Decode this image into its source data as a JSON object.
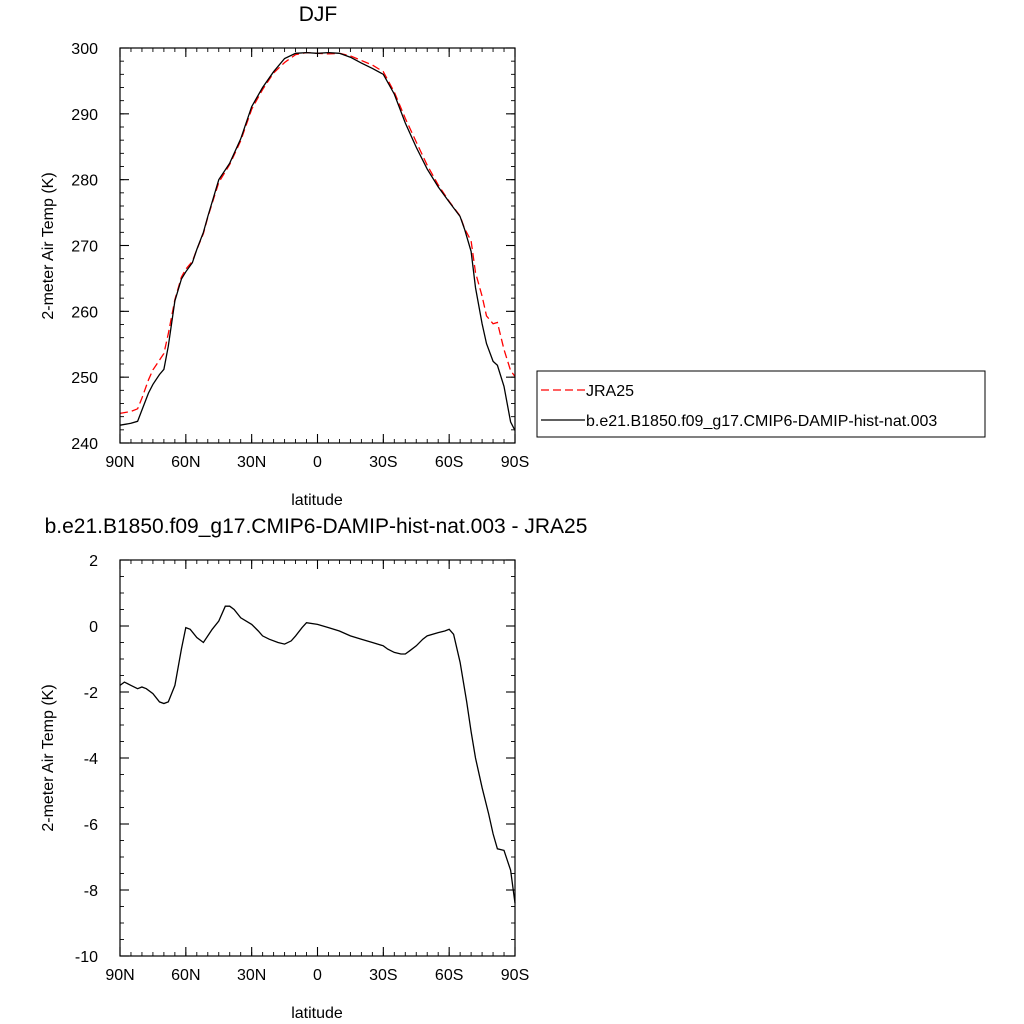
{
  "chart_data": [
    {
      "type": "line",
      "title": "DJF",
      "xlabel": "latitude",
      "ylabel": "2-meter Air Temp (K)",
      "xlim": [
        90,
        -90
      ],
      "ylim": [
        240,
        300
      ],
      "x_ticks": [
        90,
        60,
        30,
        0,
        -30,
        -60,
        -90
      ],
      "x_tick_labels": [
        "90N",
        "60N",
        "30N",
        "0",
        "30S",
        "60S",
        "90S"
      ],
      "y_ticks": [
        240,
        250,
        260,
        270,
        280,
        290,
        300
      ],
      "y_tick_labels": [
        "240",
        "250",
        "260",
        "270",
        "280",
        "290",
        "300"
      ],
      "legend_position": "right",
      "grid": false,
      "series": [
        {
          "name": "JRA25",
          "color": "#ff0000",
          "style": "dashed",
          "x": [
            90,
            85,
            82,
            80,
            77,
            75,
            72,
            70,
            68,
            65,
            62,
            60,
            57,
            55,
            52,
            50,
            45,
            40,
            35,
            30,
            25,
            20,
            15,
            10,
            5,
            0,
            -5,
            -10,
            -15,
            -20,
            -25,
            -30,
            -35,
            -40,
            -45,
            -50,
            -55,
            -60,
            -65,
            -67,
            -70,
            -72,
            -75,
            -77,
            -80,
            -82,
            -85,
            -88,
            -90
          ],
          "y": [
            244.5,
            244.8,
            245.2,
            246.8,
            249.6,
            251.1,
            252.6,
            253.6,
            256.6,
            261.8,
            265.2,
            266.4,
            267.6,
            269.4,
            271.8,
            274.3,
            279.6,
            282.3,
            285.9,
            290.7,
            293.7,
            296.2,
            297.8,
            299.0,
            299.3,
            299.2,
            299.1,
            299.2,
            298.8,
            298.1,
            297.4,
            296.4,
            293.3,
            289.3,
            285.7,
            282.2,
            279.2,
            276.7,
            274.5,
            272.6,
            270.7,
            265.9,
            262.3,
            259.3,
            258.1,
            258.3,
            254.2,
            251.0,
            250.1
          ]
        },
        {
          "name": "b.e21.B1850.f09_g17.CMIP6-DAMIP-hist-nat.003",
          "color": "#000000",
          "style": "solid",
          "x": [
            90,
            85,
            82,
            80,
            77,
            75,
            72,
            70,
            68,
            65,
            62,
            60,
            57,
            55,
            52,
            50,
            45,
            40,
            35,
            30,
            25,
            20,
            15,
            10,
            5,
            0,
            -5,
            -10,
            -15,
            -20,
            -25,
            -30,
            -35,
            -40,
            -45,
            -50,
            -55,
            -60,
            -65,
            -67,
            -70,
            -72,
            -75,
            -77,
            -80,
            -82,
            -85,
            -88,
            -90
          ],
          "y": [
            242.7,
            243.0,
            243.3,
            245.0,
            247.6,
            248.9,
            250.4,
            251.2,
            254.7,
            261.6,
            264.9,
            266.0,
            267.4,
            269.4,
            272.0,
            274.4,
            280.0,
            282.5,
            286.2,
            291.1,
            294.0,
            296.4,
            298.4,
            299.2,
            299.3,
            299.2,
            299.3,
            299.2,
            298.6,
            297.7,
            296.9,
            296.0,
            293.0,
            288.6,
            284.9,
            281.6,
            278.9,
            276.6,
            274.4,
            272.5,
            269.1,
            263.6,
            258.1,
            255.1,
            252.4,
            251.8,
            248.6,
            243.2,
            241.9
          ]
        }
      ]
    },
    {
      "type": "line",
      "title": "b.e21.B1850.f09_g17.CMIP6-DAMIP-hist-nat.003 - JRA25",
      "xlabel": "latitude",
      "ylabel": "2-meter Air Temp (K)",
      "xlim": [
        90,
        -90
      ],
      "ylim": [
        -10,
        2
      ],
      "x_ticks": [
        90,
        60,
        30,
        0,
        -30,
        -60,
        -90
      ],
      "x_tick_labels": [
        "90N",
        "60N",
        "30N",
        "0",
        "30S",
        "60S",
        "90S"
      ],
      "y_ticks": [
        -10,
        -8,
        -6,
        -4,
        -2,
        0,
        2
      ],
      "y_tick_labels": [
        "-10",
        "-8",
        "-6",
        "-4",
        "-2",
        "0",
        "2"
      ],
      "grid": false,
      "series": [
        {
          "color": "#000000",
          "style": "solid",
          "x": [
            90,
            88,
            85,
            82,
            80,
            78,
            75,
            72,
            70,
            68,
            65,
            62,
            60,
            58,
            55,
            52,
            50,
            48,
            45,
            42,
            40,
            38,
            35,
            30,
            27,
            25,
            22,
            18,
            15,
            12,
            10,
            7,
            5,
            0,
            -5,
            -10,
            -15,
            -20,
            -25,
            -30,
            -32,
            -35,
            -38,
            -40,
            -42,
            -45,
            -48,
            -50,
            -55,
            -58,
            -60,
            -62,
            -65,
            -68,
            -70,
            -72,
            -75,
            -78,
            -80,
            -82,
            -85,
            -88,
            -90
          ],
          "y": [
            -1.8,
            -1.7,
            -1.8,
            -1.9,
            -1.85,
            -1.9,
            -2.05,
            -2.3,
            -2.35,
            -2.3,
            -1.8,
            -0.7,
            -0.05,
            -0.1,
            -0.35,
            -0.5,
            -0.3,
            -0.1,
            0.15,
            0.6,
            0.6,
            0.5,
            0.25,
            0.05,
            -0.15,
            -0.3,
            -0.4,
            -0.5,
            -0.55,
            -0.45,
            -0.3,
            -0.05,
            0.1,
            0.05,
            -0.05,
            -0.15,
            -0.3,
            -0.4,
            -0.5,
            -0.6,
            -0.7,
            -0.8,
            -0.85,
            -0.85,
            -0.75,
            -0.6,
            -0.4,
            -0.3,
            -0.2,
            -0.15,
            -0.1,
            -0.25,
            -1.1,
            -2.3,
            -3.2,
            -4.0,
            -4.9,
            -5.7,
            -6.3,
            -6.75,
            -6.8,
            -7.4,
            -8.4
          ]
        }
      ]
    }
  ]
}
